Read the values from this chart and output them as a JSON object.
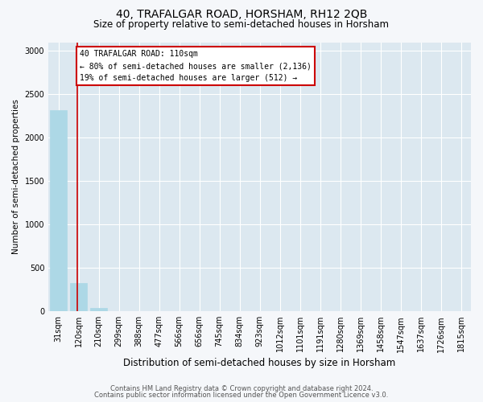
{
  "title": "40, TRAFALGAR ROAD, HORSHAM, RH12 2QB",
  "subtitle": "Size of property relative to semi-detached houses in Horsham",
  "xlabel": "Distribution of semi-detached houses by size in Horsham",
  "ylabel": "Number of semi-detached properties",
  "categories": [
    "31sqm",
    "120sqm",
    "210sqm",
    "299sqm",
    "388sqm",
    "477sqm",
    "566sqm",
    "656sqm",
    "745sqm",
    "834sqm",
    "923sqm",
    "1012sqm",
    "1101sqm",
    "1191sqm",
    "1280sqm",
    "1369sqm",
    "1458sqm",
    "1547sqm",
    "1637sqm",
    "1726sqm",
    "1815sqm"
  ],
  "values": [
    2320,
    330,
    40,
    0,
    0,
    0,
    0,
    0,
    0,
    0,
    0,
    0,
    0,
    0,
    0,
    0,
    0,
    0,
    0,
    0,
    0
  ],
  "bar_color": "#add8e6",
  "annotation_text_line1": "40 TRAFALGAR ROAD: 110sqm",
  "annotation_text_line2": "← 80% of semi-detached houses are smaller (2,136)",
  "annotation_text_line3": "19% of semi-detached houses are larger (512) →",
  "ylim_max": 3100,
  "yticks": [
    0,
    500,
    1000,
    1500,
    2000,
    2500,
    3000
  ],
  "footer_line1": "Contains HM Land Registry data © Crown copyright and database right 2024.",
  "footer_line2": "Contains public sector information licensed under the Open Government Licence v3.0.",
  "bg_color": "#f5f7fa",
  "plot_bg_color": "#dce8f0",
  "grid_color": "#ffffff",
  "annotation_box_edgecolor": "#cc0000",
  "property_line_color": "#cc0000",
  "title_fontsize": 10,
  "subtitle_fontsize": 8.5,
  "ylabel_fontsize": 7.5,
  "xlabel_fontsize": 8.5,
  "tick_fontsize": 7,
  "annotation_fontsize": 7,
  "footer_fontsize": 6
}
